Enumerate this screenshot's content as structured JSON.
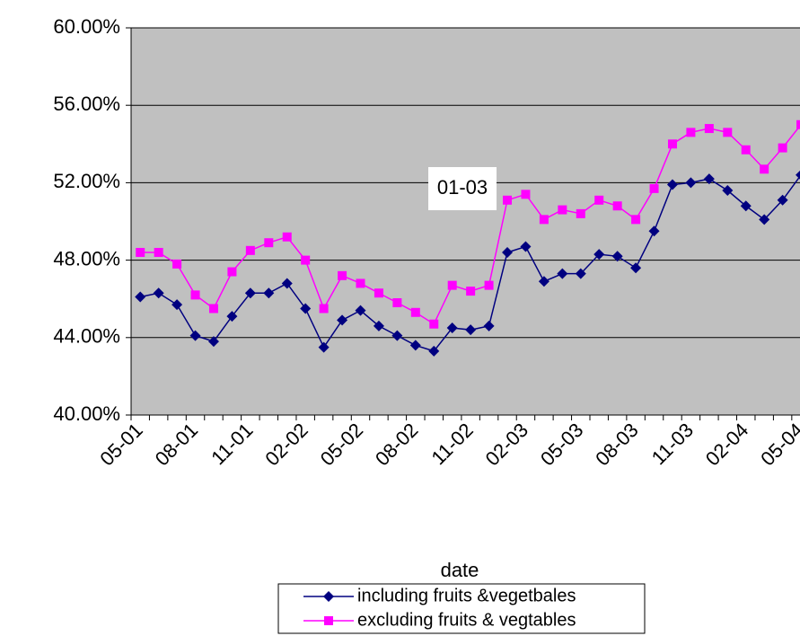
{
  "chart_data": {
    "type": "line",
    "x_label": "date",
    "annotation": "01-03",
    "annotation_index": 20,
    "categories": [
      "05-01",
      null,
      null,
      "08-01",
      null,
      null,
      "11-01",
      null,
      null,
      "02-02",
      null,
      null,
      "05-02",
      null,
      null,
      "08-02",
      null,
      null,
      "11-02",
      null,
      null,
      "02-03",
      null,
      null,
      "05-03",
      null,
      null,
      "08-03",
      null,
      null,
      "11-03",
      null,
      null,
      "02-04",
      null,
      null,
      "05-04"
    ],
    "series": [
      {
        "name": "including fruits &vegetbales",
        "color": "#000080",
        "marker": "diamond",
        "values": [
          46.1,
          46.3,
          45.7,
          44.1,
          43.8,
          45.1,
          46.3,
          46.3,
          46.8,
          45.5,
          43.5,
          44.9,
          45.4,
          44.6,
          44.1,
          43.6,
          43.3,
          44.5,
          44.4,
          44.6,
          48.4,
          48.7,
          46.9,
          47.3,
          47.3,
          48.3,
          48.2,
          47.6,
          49.5,
          51.9,
          52.0,
          52.2,
          51.6,
          50.8,
          50.1,
          51.1,
          52.4
        ]
      },
      {
        "name": "excluding fruits & vegtables",
        "color": "#ff00ff",
        "marker": "square",
        "values": [
          48.4,
          48.4,
          47.8,
          46.2,
          45.5,
          47.4,
          48.5,
          48.9,
          49.2,
          48.0,
          45.5,
          47.2,
          46.8,
          46.3,
          45.8,
          45.3,
          44.7,
          46.7,
          46.4,
          46.7,
          51.1,
          51.4,
          50.1,
          50.6,
          50.4,
          51.1,
          50.8,
          50.1,
          51.7,
          54.0,
          54.6,
          54.8,
          54.6,
          53.7,
          52.7,
          53.8,
          55.0
        ]
      }
    ],
    "ylim": [
      40,
      60
    ],
    "yticks": [
      {
        "value": 40,
        "label": "40.00%"
      },
      {
        "value": 44,
        "label": "44.00%"
      },
      {
        "value": 48,
        "label": "48.00%"
      },
      {
        "value": 52,
        "label": "52.00%"
      },
      {
        "value": 56,
        "label": "56.00%"
      },
      {
        "value": 60,
        "label": "60.00%"
      }
    ],
    "grid": true,
    "plot_background": "#c0c0c0",
    "legend": "bottom"
  }
}
